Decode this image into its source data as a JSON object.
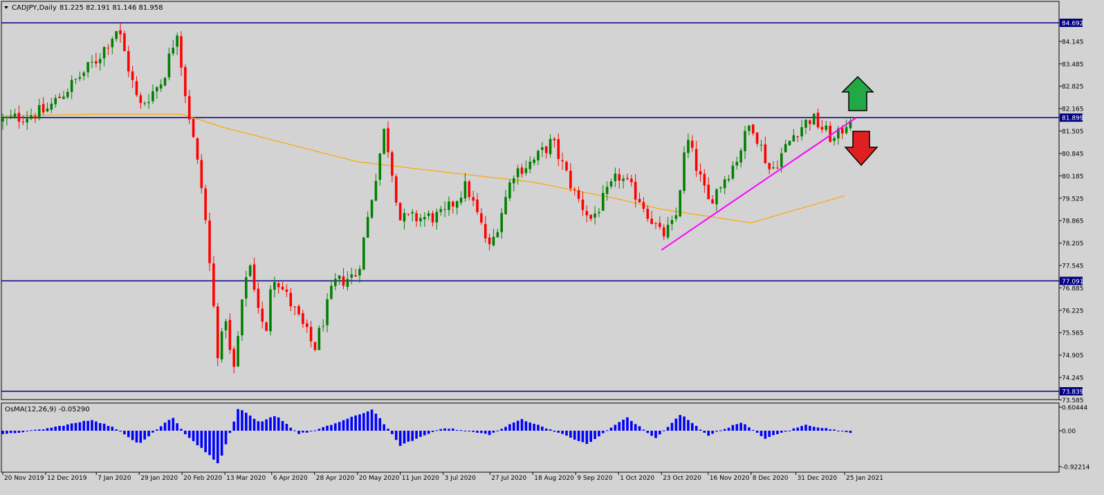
{
  "header": {
    "symbol": "CADJPY,Daily",
    "ohlc": "81.225 82.191 81.146 81.958"
  },
  "indicator": {
    "label": "OsMA(12,26,9) -0.05290"
  },
  "colors": {
    "background": "#d3d3d3",
    "bull_candle": "#008000",
    "bear_candle": "#ff0000",
    "moving_average": "#ffa500",
    "trendline": "#ff00ff",
    "horizontal_levels": "#000080",
    "osma_bars": "#0000ff",
    "price_tag": "#000080",
    "arrow_up": "#22a844",
    "arrow_down": "#e02020"
  },
  "icons": {
    "up_arrow": "green-up-arrow-icon",
    "down_arrow": "red-down-arrow-icon"
  },
  "chart_data": [
    {
      "type": "candlestick",
      "symbol": "CADJPY",
      "timeframe": "Daily",
      "ylim": [
        73.585,
        85.0
      ],
      "price_ticks": [
        "84.145",
        "83.485",
        "82.825",
        "82.165",
        "81.505",
        "80.845",
        "80.185",
        "79.525",
        "78.865",
        "78.205",
        "77.545",
        "76.885",
        "76.225",
        "75.565",
        "74.905",
        "74.245",
        "73.585"
      ],
      "x_ticks": [
        "20 Nov 2019",
        "12 Dec 2019",
        "7 Jan 2020",
        "29 Jan 2020",
        "20 Feb 2020",
        "13 Mar 2020",
        "6 Apr 2020",
        "28 Apr 2020",
        "20 May 2020",
        "11 Jun 2020",
        "3 Jul 2020",
        "27 Jul 2020",
        "18 Aug 2020",
        "9 Sep 2020",
        "1 Oct 2020",
        "23 Oct 2020",
        "16 Nov 2020",
        "8 Dec 2020",
        "31 Dec 2020",
        "25 Jan 2021"
      ],
      "horizontal_levels": [
        "84.692",
        "81.899",
        "77.091",
        "73.839"
      ],
      "current_price": "81.899",
      "close_path": [
        {
          "date": "20 Nov 2019",
          "close": 81.8
        },
        {
          "date": "12 Dec 2019",
          "close": 82.1
        },
        {
          "date": "7 Jan 2020",
          "close": 83.6
        },
        {
          "date": "18 Jan 2020",
          "close": 84.55
        },
        {
          "date": "29 Jan 2020",
          "close": 82.2
        },
        {
          "date": "10 Feb 2020",
          "close": 83.0
        },
        {
          "date": "18 Feb 2020",
          "close": 84.6
        },
        {
          "date": "20 Feb 2020",
          "close": 83.2
        },
        {
          "date": "2 Mar 2020",
          "close": 79.5
        },
        {
          "date": "10 Mar 2020",
          "close": 74.6
        },
        {
          "date": "13 Mar 2020",
          "close": 76.3
        },
        {
          "date": "17 Mar 2020",
          "close": 74.2
        },
        {
          "date": "25 Mar 2020",
          "close": 77.8
        },
        {
          "date": "3 Apr 2020",
          "close": 75.3
        },
        {
          "date": "6 Apr 2020",
          "close": 77.4
        },
        {
          "date": "16 Apr 2020",
          "close": 76.4
        },
        {
          "date": "28 Apr 2020",
          "close": 75.1
        },
        {
          "date": "8 May 2020",
          "close": 77.0
        },
        {
          "date": "20 May 2020",
          "close": 77.3
        },
        {
          "date": "3 Jun 2020",
          "close": 81.6
        },
        {
          "date": "11 Jun 2020",
          "close": 78.9
        },
        {
          "date": "3 Jul 2020",
          "close": 79.0
        },
        {
          "date": "15 Jul 2020",
          "close": 79.9
        },
        {
          "date": "27 Jul 2020",
          "close": 78.0
        },
        {
          "date": "8 Aug 2020",
          "close": 80.3
        },
        {
          "date": "18 Aug 2020",
          "close": 80.6
        },
        {
          "date": "28 Aug 2020",
          "close": 81.2
        },
        {
          "date": "9 Sep 2020",
          "close": 79.6
        },
        {
          "date": "17 Sep 2020",
          "close": 78.9
        },
        {
          "date": "1 Oct 2020",
          "close": 80.2
        },
        {
          "date": "12 Oct 2020",
          "close": 79.5
        },
        {
          "date": "23 Oct 2020",
          "close": 78.4
        },
        {
          "date": "30 Oct 2020",
          "close": 78.8
        },
        {
          "date": "5 Nov 2020",
          "close": 81.3
        },
        {
          "date": "16 Nov 2020",
          "close": 79.4
        },
        {
          "date": "30 Nov 2020",
          "close": 80.6
        },
        {
          "date": "8 Dec 2020",
          "close": 81.8
        },
        {
          "date": "18 Dec 2020",
          "close": 80.3
        },
        {
          "date": "31 Dec 2020",
          "close": 81.5
        },
        {
          "date": "8 Jan 2021",
          "close": 81.9
        },
        {
          "date": "20 Jan 2021",
          "close": 81.2
        },
        {
          "date": "28 Jan 2021",
          "close": 81.958
        }
      ],
      "moving_average": [
        {
          "date": "20 Nov 2019",
          "value": 81.95
        },
        {
          "date": "7 Jan 2020",
          "value": 82.0
        },
        {
          "date": "20 Feb 2020",
          "value": 82.0
        },
        {
          "date": "13 Mar 2020",
          "value": 81.6
        },
        {
          "date": "20 May 2020",
          "value": 80.6
        },
        {
          "date": "3 Jul 2020",
          "value": 80.3
        },
        {
          "date": "18 Aug 2020",
          "value": 80.0
        },
        {
          "date": "1 Oct 2020",
          "value": 79.5
        },
        {
          "date": "23 Oct 2020",
          "value": 79.2
        },
        {
          "date": "8 Dec 2020",
          "value": 78.8
        },
        {
          "date": "25 Jan 2021",
          "value": 79.6
        }
      ],
      "trendline": [
        {
          "date": "23 Oct 2020",
          "value": 78.0
        },
        {
          "date": "31 Jan 2021",
          "value": 81.9
        }
      ]
    },
    {
      "type": "bar",
      "name": "OsMA(12,26,9)",
      "ylim": [
        -0.92214,
        0.60444
      ],
      "ticks": [
        "0.60444",
        "0.00",
        "-0.92214"
      ],
      "last_value": "-0.05290",
      "path": [
        {
          "date": "20 Nov 2019",
          "value": -0.1
        },
        {
          "date": "12 Dec 2019",
          "value": 0.05
        },
        {
          "date": "5 Jan 2020",
          "value": 0.28
        },
        {
          "date": "15 Jan 2020",
          "value": 0.1
        },
        {
          "date": "29 Jan 2020",
          "value": -0.33
        },
        {
          "date": "15 Feb 2020",
          "value": 0.35
        },
        {
          "date": "22 Feb 2020",
          "value": -0.1
        },
        {
          "date": "10 Mar 2020",
          "value": -0.85
        },
        {
          "date": "20 Mar 2020",
          "value": 0.58
        },
        {
          "date": "31 Mar 2020",
          "value": 0.2
        },
        {
          "date": "8 Apr 2020",
          "value": 0.4
        },
        {
          "date": "20 Apr 2020",
          "value": -0.08
        },
        {
          "date": "28 Apr 2020",
          "value": 0.0
        },
        {
          "date": "12 May 2020",
          "value": 0.25
        },
        {
          "date": "28 May 2020",
          "value": 0.55
        },
        {
          "date": "11 Jun 2020",
          "value": -0.38
        },
        {
          "date": "3 Jul 2020",
          "value": 0.08
        },
        {
          "date": "27 Jul 2020",
          "value": -0.1
        },
        {
          "date": "12 Aug 2020",
          "value": 0.3
        },
        {
          "date": "26 Aug 2020",
          "value": 0.05
        },
        {
          "date": "15 Sep 2020",
          "value": -0.35
        },
        {
          "date": "5 Oct 2020",
          "value": 0.35
        },
        {
          "date": "20 Oct 2020",
          "value": -0.2
        },
        {
          "date": "2 Nov 2020",
          "value": 0.42
        },
        {
          "date": "16 Nov 2020",
          "value": -0.12
        },
        {
          "date": "3 Dec 2020",
          "value": 0.22
        },
        {
          "date": "15 Dec 2020",
          "value": -0.2
        },
        {
          "date": "5 Jan 2021",
          "value": 0.15
        },
        {
          "date": "28 Jan 2021",
          "value": -0.053
        }
      ]
    }
  ]
}
